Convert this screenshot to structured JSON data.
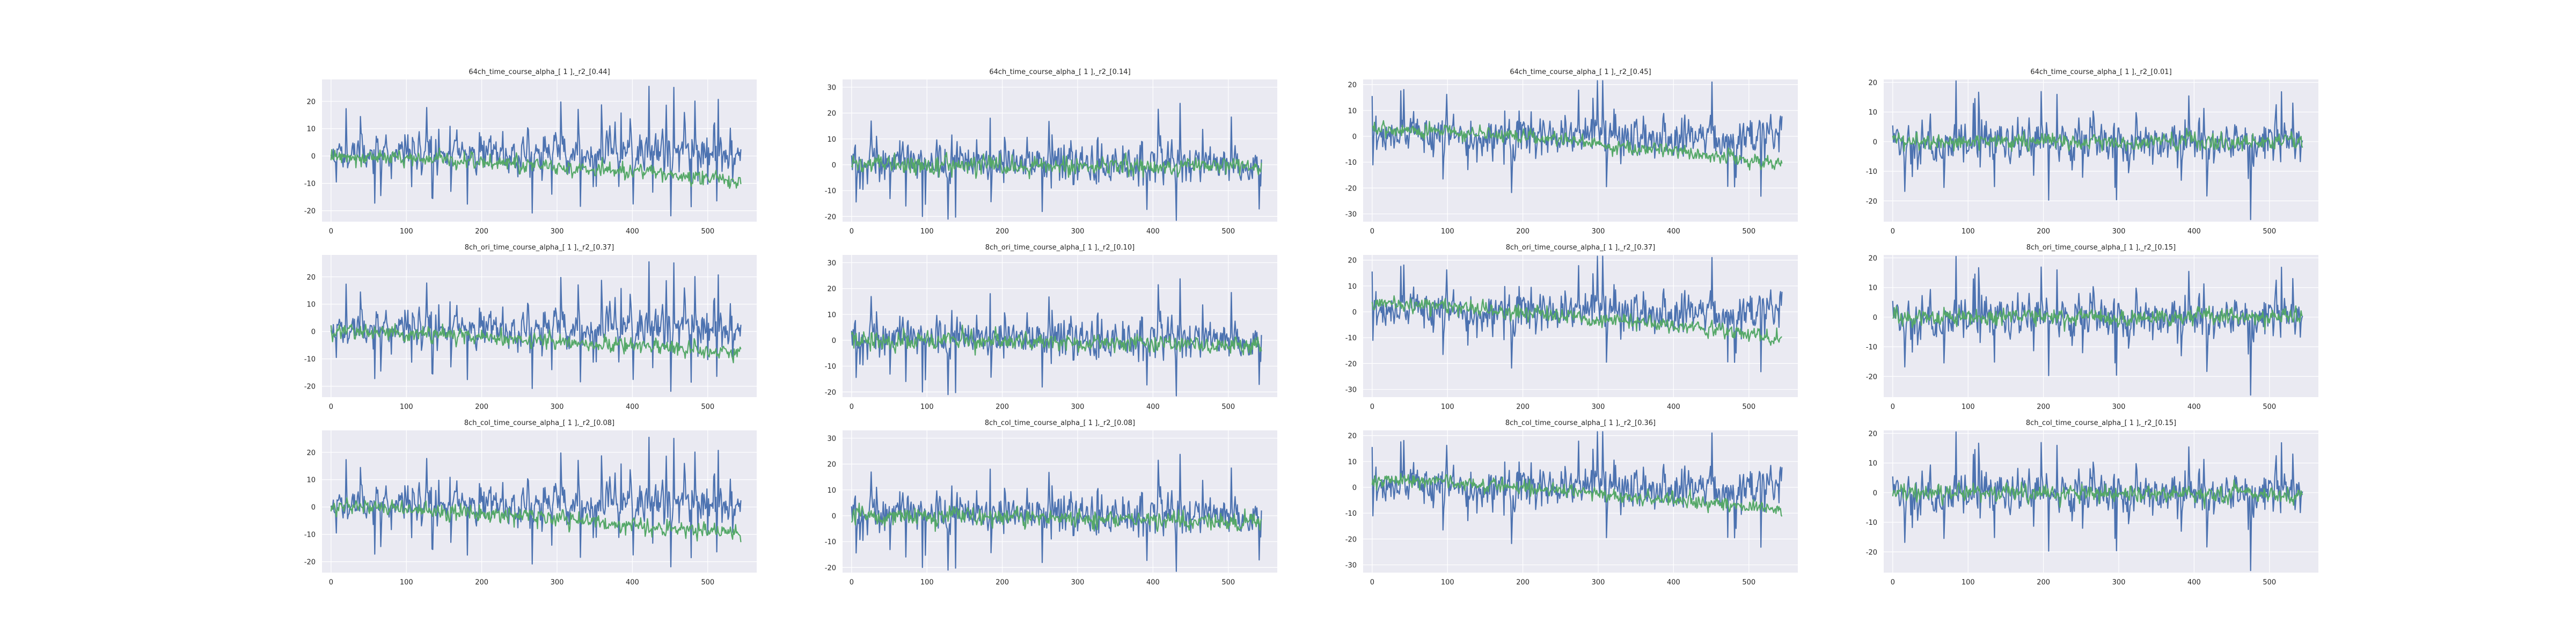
{
  "colors": {
    "background": "#eaeaf2",
    "grid": "#ffffff",
    "text": "#262626"
  },
  "chart_data": [
    {
      "type": "line",
      "title": "64ch_time_course_alpha_[ 1 ],_r2_[0.44]",
      "xlim": [
        -12,
        565
      ],
      "ylim": [
        -24,
        28
      ],
      "xticks": [
        0,
        100,
        200,
        300,
        400,
        500
      ],
      "yticks": [
        -20,
        -10,
        0,
        10,
        20
      ],
      "grid": true,
      "legend": "none",
      "series": [
        {
          "color": "#4c72b0",
          "n": 545,
          "mean": 1.5,
          "amp": 7,
          "spikes": 15,
          "seed": 11
        },
        {
          "color": "#55a868",
          "n": 545,
          "mean": 0,
          "amp": 2.5,
          "trend_end": -9,
          "seed": 12
        }
      ]
    },
    {
      "type": "line",
      "title": "64ch_time_course_alpha_[ 1 ],_r2_[0.14]",
      "xlim": [
        -12,
        565
      ],
      "ylim": [
        -22,
        33
      ],
      "xticks": [
        0,
        100,
        200,
        300,
        400,
        500
      ],
      "yticks": [
        -20,
        -10,
        0,
        10,
        20,
        30
      ],
      "grid": true,
      "legend": "none",
      "series": [
        {
          "color": "#4c72b0",
          "n": 545,
          "mean": 1,
          "amp": 7,
          "spikes": 17,
          "seed": 21
        },
        {
          "color": "#55a868",
          "n": 545,
          "mean": 0,
          "amp": 3,
          "trend_end": -1,
          "seed": 22
        }
      ]
    },
    {
      "type": "line",
      "title": "64ch_time_course_alpha_[ 1 ],_r2_[0.45]",
      "xlim": [
        -12,
        565
      ],
      "ylim": [
        -33,
        22
      ],
      "xticks": [
        0,
        100,
        200,
        300,
        400,
        500
      ],
      "yticks": [
        -30,
        -20,
        -10,
        0,
        10,
        20
      ],
      "grid": true,
      "legend": "none",
      "series": [
        {
          "color": "#4c72b0",
          "n": 545,
          "mean": 0,
          "amp": 7,
          "spikes": 16,
          "seed": 31
        },
        {
          "color": "#55a868",
          "n": 545,
          "mean": 3,
          "amp": 2.5,
          "trend_end": -14,
          "seed": 32
        }
      ]
    },
    {
      "type": "line",
      "title": "64ch_time_course_alpha_[ 1 ],_r2_[0.01]",
      "xlim": [
        -12,
        565
      ],
      "ylim": [
        -27,
        21
      ],
      "xticks": [
        0,
        100,
        200,
        300,
        400,
        500
      ],
      "yticks": [
        -20,
        -10,
        0,
        10,
        20
      ],
      "grid": true,
      "legend": "none",
      "series": [
        {
          "color": "#4c72b0",
          "n": 545,
          "mean": 0,
          "amp": 6,
          "spikes": 14,
          "seed": 41
        },
        {
          "color": "#55a868",
          "n": 545,
          "mean": 0,
          "amp": 2.5,
          "trend_end": 0,
          "seed": 42
        }
      ]
    },
    {
      "type": "line",
      "title": "8ch_ori_time_course_alpha_[ 1 ],_r2_[0.37]",
      "xlim": [
        -12,
        565
      ],
      "ylim": [
        -24,
        28
      ],
      "xticks": [
        0,
        100,
        200,
        300,
        400,
        500
      ],
      "yticks": [
        -20,
        -10,
        0,
        10,
        20
      ],
      "grid": true,
      "legend": "none",
      "series": [
        {
          "color": "#4c72b0",
          "n": 545,
          "mean": 1.5,
          "amp": 7,
          "spikes": 15,
          "seed": 11
        },
        {
          "color": "#55a868",
          "n": 545,
          "mean": 0,
          "amp": 2.5,
          "trend_end": -8,
          "seed": 52
        }
      ]
    },
    {
      "type": "line",
      "title": "8ch_ori_time_course_alpha_[ 1 ],_r2_[0.10]",
      "xlim": [
        -12,
        565
      ],
      "ylim": [
        -22,
        33
      ],
      "xticks": [
        0,
        100,
        200,
        300,
        400,
        500
      ],
      "yticks": [
        -20,
        -10,
        0,
        10,
        20,
        30
      ],
      "grid": true,
      "legend": "none",
      "series": [
        {
          "color": "#4c72b0",
          "n": 545,
          "mean": 1,
          "amp": 7,
          "spikes": 17,
          "seed": 21
        },
        {
          "color": "#55a868",
          "n": 545,
          "mean": 0,
          "amp": 3,
          "trend_end": -2,
          "seed": 62
        }
      ]
    },
    {
      "type": "line",
      "title": "8ch_ori_time_course_alpha_[ 1 ],_r2_[0.37]",
      "xlim": [
        -12,
        565
      ],
      "ylim": [
        -33,
        22
      ],
      "xticks": [
        0,
        100,
        200,
        300,
        400,
        500
      ],
      "yticks": [
        -30,
        -20,
        -10,
        0,
        10,
        20
      ],
      "grid": true,
      "legend": "none",
      "series": [
        {
          "color": "#4c72b0",
          "n": 545,
          "mean": 0,
          "amp": 7,
          "spikes": 16,
          "seed": 31
        },
        {
          "color": "#55a868",
          "n": 545,
          "mean": 3,
          "amp": 2.5,
          "trend_end": -13,
          "seed": 72
        }
      ]
    },
    {
      "type": "line",
      "title": "8ch_ori_time_course_alpha_[ 1 ],_r2_[0.15]",
      "xlim": [
        -12,
        565
      ],
      "ylim": [
        -27,
        21
      ],
      "xticks": [
        0,
        100,
        200,
        300,
        400,
        500
      ],
      "yticks": [
        -20,
        -10,
        0,
        10,
        20
      ],
      "grid": true,
      "legend": "none",
      "series": [
        {
          "color": "#4c72b0",
          "n": 545,
          "mean": 0,
          "amp": 6,
          "spikes": 14,
          "seed": 41
        },
        {
          "color": "#55a868",
          "n": 545,
          "mean": 0,
          "amp": 2.5,
          "trend_end": 0,
          "seed": 82
        }
      ]
    },
    {
      "type": "line",
      "title": "8ch_col_time_course_alpha_[ 1 ],_r2_[0.08]",
      "xlim": [
        -12,
        565
      ],
      "ylim": [
        -24,
        28
      ],
      "xticks": [
        0,
        100,
        200,
        300,
        400,
        500
      ],
      "yticks": [
        -20,
        -10,
        0,
        10,
        20
      ],
      "grid": true,
      "legend": "none",
      "series": [
        {
          "color": "#4c72b0",
          "n": 545,
          "mean": 1.5,
          "amp": 7,
          "spikes": 15,
          "seed": 11
        },
        {
          "color": "#55a868",
          "n": 545,
          "mean": 0,
          "amp": 2.5,
          "trend_end": -10,
          "seed": 92
        }
      ]
    },
    {
      "type": "line",
      "title": "8ch_col_time_course_alpha_[ 1 ],_r2_[0.08]",
      "xlim": [
        -12,
        565
      ],
      "ylim": [
        -22,
        33
      ],
      "xticks": [
        0,
        100,
        200,
        300,
        400,
        500
      ],
      "yticks": [
        -20,
        -10,
        0,
        10,
        20,
        30
      ],
      "grid": true,
      "legend": "none",
      "series": [
        {
          "color": "#4c72b0",
          "n": 545,
          "mean": 1,
          "amp": 7,
          "spikes": 17,
          "seed": 21
        },
        {
          "color": "#55a868",
          "n": 545,
          "mean": 0,
          "amp": 3,
          "trend_end": -3,
          "seed": 102
        }
      ]
    },
    {
      "type": "line",
      "title": "8ch_col_time_course_alpha_[ 1 ],_r2_[0.36]",
      "xlim": [
        -12,
        565
      ],
      "ylim": [
        -33,
        22
      ],
      "xticks": [
        0,
        100,
        200,
        300,
        400,
        500
      ],
      "yticks": [
        -30,
        -20,
        -10,
        0,
        10,
        20
      ],
      "grid": true,
      "legend": "none",
      "series": [
        {
          "color": "#4c72b0",
          "n": 545,
          "mean": 0,
          "amp": 7,
          "spikes": 16,
          "seed": 31
        },
        {
          "color": "#55a868",
          "n": 545,
          "mean": 3,
          "amp": 2.5,
          "trend_end": -12,
          "seed": 112
        }
      ]
    },
    {
      "type": "line",
      "title": "8ch_col_time_course_alpha_[ 1 ],_r2_[0.15]",
      "xlim": [
        -12,
        565
      ],
      "ylim": [
        -27,
        21
      ],
      "xticks": [
        0,
        100,
        200,
        300,
        400,
        500
      ],
      "yticks": [
        -20,
        -10,
        0,
        10,
        20
      ],
      "grid": true,
      "legend": "none",
      "series": [
        {
          "color": "#4c72b0",
          "n": 545,
          "mean": 0,
          "amp": 6,
          "spikes": 14,
          "seed": 41
        },
        {
          "color": "#55a868",
          "n": 545,
          "mean": 0,
          "amp": 2.5,
          "trend_end": -1,
          "seed": 122
        }
      ]
    }
  ]
}
